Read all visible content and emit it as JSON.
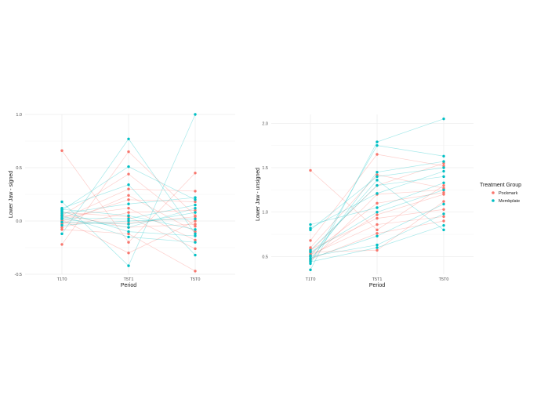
{
  "colors": {
    "Pockmark": "#F8766D",
    "Membplate": "#00BFC4",
    "grid": "#ebebeb"
  },
  "legend": {
    "title": "Treatment Group",
    "items": [
      {
        "label": "Pockmark",
        "color": "#F8766D"
      },
      {
        "label": "Membplate",
        "color": "#00BFC4"
      }
    ]
  },
  "chart_data": [
    {
      "type": "line",
      "ylabel": "Lower Jaw - signed",
      "xlabel": "Period",
      "categories": [
        "T1T0",
        "T5T1",
        "T5T0"
      ],
      "ylim": [
        -0.5,
        1.0
      ],
      "yticks": [
        -0.5,
        0.0,
        0.5,
        1.0
      ],
      "ytick_labels": [
        "-0.5",
        "0.0",
        "0.5",
        "1.0"
      ],
      "grid": true,
      "series": [
        {
          "group": "Pockmark",
          "values": [
            0.66,
            -0.2,
            0.45
          ]
        },
        {
          "group": "Pockmark",
          "values": [
            -0.22,
            0.65,
            0.05
          ]
        },
        {
          "group": "Pockmark",
          "values": [
            0.05,
            0.44,
            -0.05
          ]
        },
        {
          "group": "Pockmark",
          "values": [
            0.02,
            0.3,
            0.28
          ]
        },
        {
          "group": "Pockmark",
          "values": [
            -0.03,
            0.24,
            -0.1
          ]
        },
        {
          "group": "Pockmark",
          "values": [
            0.0,
            0.2,
            0.18
          ]
        },
        {
          "group": "Pockmark",
          "values": [
            0.04,
            0.12,
            -0.18
          ]
        },
        {
          "group": "Pockmark",
          "values": [
            -0.06,
            0.08,
            0.1
          ]
        },
        {
          "group": "Pockmark",
          "values": [
            0.08,
            0.04,
            -0.26
          ]
        },
        {
          "group": "Pockmark",
          "values": [
            -0.02,
            -0.02,
            0.04
          ]
        },
        {
          "group": "Pockmark",
          "values": [
            0.06,
            -0.06,
            -0.03
          ]
        },
        {
          "group": "Pockmark",
          "values": [
            -0.08,
            -0.12,
            -0.47
          ]
        },
        {
          "group": "Pockmark",
          "values": [
            0.01,
            -0.3,
            0.0
          ]
        },
        {
          "group": "Membplate",
          "values": [
            0.18,
            -0.42,
            1.0
          ]
        },
        {
          "group": "Membplate",
          "values": [
            -0.12,
            0.77,
            -0.12
          ]
        },
        {
          "group": "Membplate",
          "values": [
            0.1,
            0.51,
            0.2
          ]
        },
        {
          "group": "Membplate",
          "values": [
            0.12,
            0.34,
            -0.32
          ]
        },
        {
          "group": "Membplate",
          "values": [
            0.07,
            0.16,
            0.22
          ]
        },
        {
          "group": "Membplate",
          "values": [
            0.03,
            0.02,
            0.15
          ]
        },
        {
          "group": "Membplate",
          "values": [
            -0.01,
            -0.03,
            0.08
          ]
        },
        {
          "group": "Membplate",
          "values": [
            0.09,
            -0.1,
            -0.14
          ]
        },
        {
          "group": "Membplate",
          "values": [
            0.05,
            -0.15,
            -0.2
          ]
        },
        {
          "group": "Membplate",
          "values": [
            -0.04,
            0.0,
            0.02
          ]
        },
        {
          "group": "Membplate",
          "values": [
            0.11,
            0.05,
            -0.08
          ]
        },
        {
          "group": "Membplate",
          "values": [
            0.02,
            -0.06,
            0.12
          ]
        }
      ]
    },
    {
      "type": "line",
      "ylabel": "Lower Jaw - unsigned",
      "xlabel": "Period",
      "categories": [
        "T1T0",
        "T5T1",
        "T5T0"
      ],
      "ylim": [
        0.3,
        2.1
      ],
      "yticks": [
        0.5,
        1.0,
        1.5,
        2.0
      ],
      "ytick_labels": [
        "0.5",
        "1.0",
        "1.5",
        "2.0"
      ],
      "grid": true,
      "series": [
        {
          "group": "Pockmark",
          "values": [
            1.47,
            0.8,
            1.3
          ]
        },
        {
          "group": "Pockmark",
          "values": [
            0.68,
            1.65,
            1.52
          ]
        },
        {
          "group": "Pockmark",
          "values": [
            0.6,
            1.42,
            1.27
          ]
        },
        {
          "group": "Pockmark",
          "values": [
            0.56,
            1.3,
            1.55
          ]
        },
        {
          "group": "Pockmark",
          "values": [
            0.53,
            1.1,
            1.22
          ]
        },
        {
          "group": "Pockmark",
          "values": [
            0.5,
            0.97,
            1.2
          ]
        },
        {
          "group": "Pockmark",
          "values": [
            0.58,
            0.93,
            1.03
          ]
        },
        {
          "group": "Pockmark",
          "values": [
            0.52,
            0.86,
            0.95
          ]
        },
        {
          "group": "Pockmark",
          "values": [
            0.47,
            0.76,
            0.9
          ]
        },
        {
          "group": "Pockmark",
          "values": [
            0.55,
            0.57,
            1.12
          ]
        },
        {
          "group": "Pockmark",
          "values": [
            0.45,
            1.2,
            1.25
          ]
        },
        {
          "group": "Membplate",
          "values": [
            0.35,
            1.79,
            2.05
          ]
        },
        {
          "group": "Membplate",
          "values": [
            0.42,
            1.75,
            1.63
          ]
        },
        {
          "group": "Membplate",
          "values": [
            0.46,
            1.45,
            1.57
          ]
        },
        {
          "group": "Membplate",
          "values": [
            0.8,
            1.4,
            1.5
          ]
        },
        {
          "group": "Membplate",
          "values": [
            0.82,
            1.21,
            1.46
          ]
        },
        {
          "group": "Membplate",
          "values": [
            0.86,
            1.05,
            1.33
          ]
        },
        {
          "group": "Membplate",
          "values": [
            0.55,
            1.0,
            1.25
          ]
        },
        {
          "group": "Membplate",
          "values": [
            0.48,
            0.73,
            1.09
          ]
        },
        {
          "group": "Membplate",
          "values": [
            0.5,
            0.63,
            0.98
          ]
        },
        {
          "group": "Membplate",
          "values": [
            0.44,
            0.6,
            0.85
          ]
        },
        {
          "group": "Membplate",
          "values": [
            0.51,
            1.36,
            0.8
          ]
        },
        {
          "group": "Membplate",
          "values": [
            0.57,
            1.3,
            1.4
          ]
        }
      ]
    }
  ]
}
